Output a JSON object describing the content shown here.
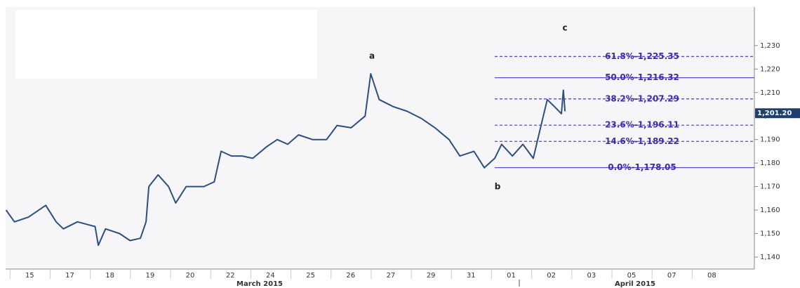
{
  "chart_data": {
    "type": "line",
    "xlim": [
      -0.6,
      18.06
    ],
    "ylim": [
      1134.9,
      1246.4
    ],
    "xticks": [
      {
        "value": 0,
        "label": "15"
      },
      {
        "value": 1,
        "label": "17"
      },
      {
        "value": 2,
        "label": "18"
      },
      {
        "value": 3,
        "label": "19"
      },
      {
        "value": 4,
        "label": "20"
      },
      {
        "value": 5,
        "label": "22"
      },
      {
        "value": 6,
        "label": "24"
      },
      {
        "value": 7,
        "label": "25"
      },
      {
        "value": 8,
        "label": "26"
      },
      {
        "value": 9,
        "label": "27"
      },
      {
        "value": 10,
        "label": "29"
      },
      {
        "value": 11,
        "label": "31"
      },
      {
        "value": 12,
        "label": "01"
      },
      {
        "value": 13,
        "label": "02"
      },
      {
        "value": 14,
        "label": "03"
      },
      {
        "value": 15,
        "label": "05"
      },
      {
        "value": 16,
        "label": "07"
      },
      {
        "value": 17,
        "label": "08"
      }
    ],
    "yticks": [
      {
        "value": 1140,
        "label": "1,140"
      },
      {
        "value": 1150,
        "label": "1,150"
      },
      {
        "value": 1160,
        "label": "1,160"
      },
      {
        "value": 1170,
        "label": "1,170"
      },
      {
        "value": 1180,
        "label": "1,180"
      },
      {
        "value": 1190,
        "label": "1,190"
      },
      {
        "value": 1200,
        "label": "1,200"
      },
      {
        "value": 1210,
        "label": "1,210"
      },
      {
        "value": 1220,
        "label": "1,220"
      },
      {
        "value": 1230,
        "label": "1,230"
      }
    ],
    "month_labels": [
      "March 2015",
      "April 2015"
    ],
    "wave_labels": [
      "a",
      "b",
      "c"
    ],
    "series": [
      {
        "color": "#2c4f80",
        "x": [
          -0.59,
          -0.38,
          -0.03,
          0.4,
          0.66,
          0.84,
          1.19,
          1.63,
          1.71,
          1.89,
          2.24,
          2.5,
          2.76,
          2.9,
          2.97,
          3.2,
          3.46,
          3.64,
          3.9,
          4.34,
          4.6,
          4.77,
          5.03,
          5.3,
          5.56,
          5.91,
          6.17,
          6.43,
          6.7,
          7.05,
          7.4,
          7.66,
          8.01,
          8.36,
          8.5,
          8.71,
          9.06,
          9.41,
          9.76,
          10.1,
          10.45,
          10.72,
          11.07,
          11.33,
          11.59,
          11.76,
          12.03,
          12.29,
          12.55,
          12.73,
          12.9,
          13.08,
          13.25,
          13.3,
          13.34
        ],
        "values": [
          1160,
          1155,
          1157,
          1162,
          1155,
          1152,
          1155,
          1153,
          1145,
          1152,
          1150,
          1147,
          1148,
          1155,
          1170,
          1175,
          1170,
          1163,
          1170,
          1170,
          1172,
          1185,
          1183,
          1183,
          1182,
          1187,
          1190,
          1188,
          1192,
          1190,
          1190,
          1196,
          1195,
          1200,
          1218,
          1207,
          1204,
          1202,
          1199,
          1195,
          1190,
          1183,
          1185,
          1178,
          1182,
          1188,
          1183,
          1188,
          1182,
          1195,
          1207,
          1204,
          1201,
          1211,
          1202
        ]
      }
    ],
    "fib_color": "#5a4bc2",
    "fib_levels": [
      {
        "value": 1225.35,
        "label": "61.8%-1,225.35",
        "dashed": true
      },
      {
        "value": 1216.32,
        "label": "50.0%-1,216.32",
        "dashed": false
      },
      {
        "value": 1207.29,
        "label": "38.2%-1,207.29",
        "dashed": true
      },
      {
        "value": 1196.11,
        "label": "23.6%-1,196.11",
        "dashed": true
      },
      {
        "value": 1189.22,
        "label": "14.6%-1,189.22",
        "dashed": true
      },
      {
        "value": 1178.05,
        "label": "0.0%-1,178.05",
        "dashed": false
      }
    ],
    "last_price": {
      "value": 1201.2,
      "label": "1,201.20"
    }
  }
}
